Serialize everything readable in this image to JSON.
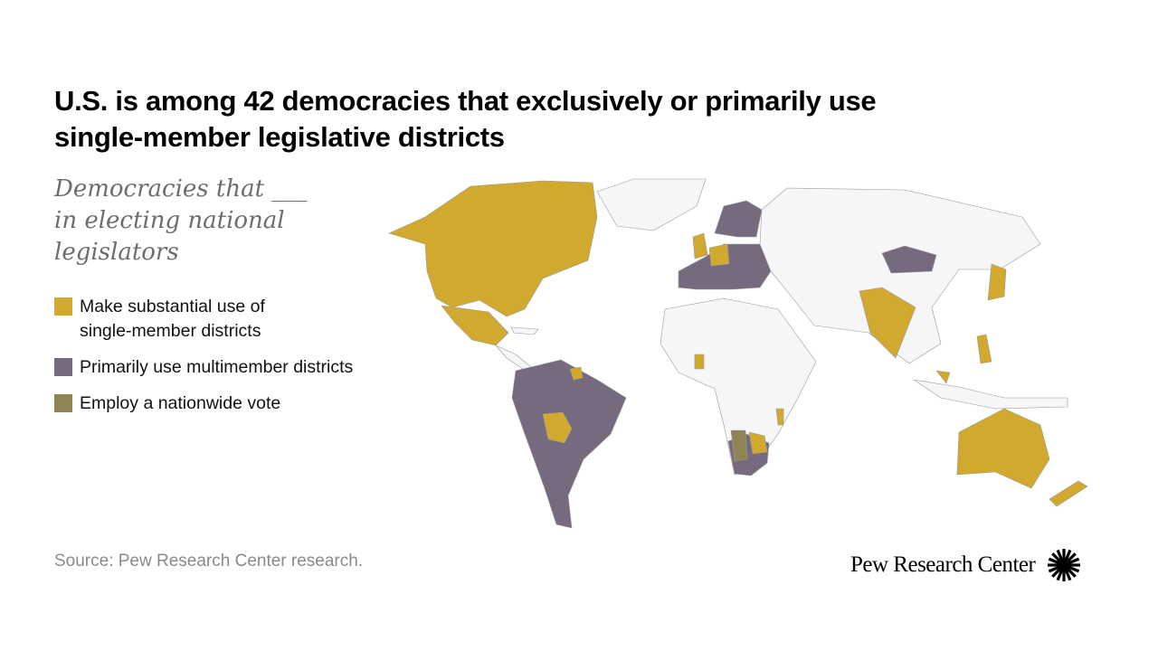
{
  "title": "U.S. is among 42 democracies that exclusively or primarily use single-member legislative districts",
  "subtitle": "Democracies that ___ in electing national legislators",
  "legend": [
    {
      "label": "Make substantial use of single-member districts",
      "color": "#D1A92F"
    },
    {
      "label": "Primarily use multimember districts",
      "color": "#756A7E"
    },
    {
      "label": "Employ a nationwide vote",
      "color": "#8E8456"
    }
  ],
  "colors": {
    "other_land": "#F6F6F8",
    "border": "#9a9a9a"
  },
  "source": "Source: Pew Research Center research.",
  "logo": {
    "text": "Pew Research Center"
  }
}
